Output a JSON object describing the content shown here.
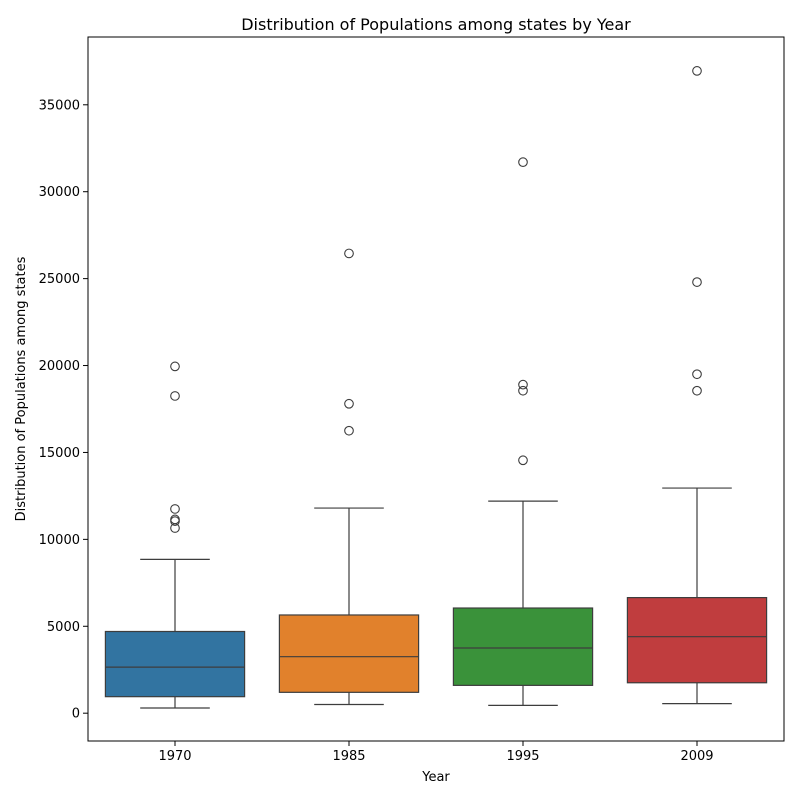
{
  "chart_data": {
    "type": "box",
    "title": "Distribution of Populations among states by Year",
    "xlabel": "Year",
    "ylabel": "Distribution of Populations among states",
    "ylim": [
      -1600,
      38900
    ],
    "yticks": [
      0,
      5000,
      10000,
      15000,
      20000,
      25000,
      30000,
      35000
    ],
    "categories": [
      "1970",
      "1985",
      "1995",
      "2009"
    ],
    "colors": [
      "#3274a1",
      "#e1812c",
      "#3a923a",
      "#c03d3e"
    ],
    "boxes": [
      {
        "category": "1970",
        "whisker_low": 300,
        "q1": 950,
        "median": 2650,
        "q3": 4700,
        "whisker_high": 8850,
        "outliers": [
          10650,
          11050,
          11150,
          11750,
          18250,
          19950
        ]
      },
      {
        "category": "1985",
        "whisker_low": 500,
        "q1": 1200,
        "median": 3250,
        "q3": 5650,
        "whisker_high": 11800,
        "outliers": [
          16250,
          17800,
          26450
        ]
      },
      {
        "category": "1995",
        "whisker_low": 450,
        "q1": 1600,
        "median": 3750,
        "q3": 6050,
        "whisker_high": 12200,
        "outliers": [
          14550,
          18550,
          18900,
          31700
        ]
      },
      {
        "category": "2009",
        "whisker_low": 550,
        "q1": 1750,
        "median": 4400,
        "q3": 6650,
        "whisker_high": 12950,
        "outliers": [
          18550,
          19500,
          24800,
          36950
        ]
      }
    ]
  }
}
